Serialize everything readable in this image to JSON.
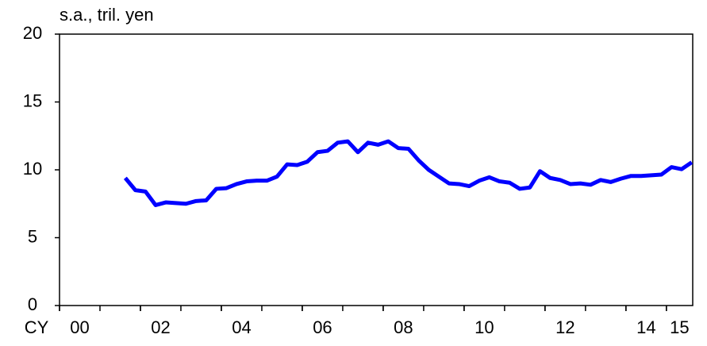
{
  "chart_data": {
    "type": "line",
    "y_label": "s.a., tril. yen",
    "x_label": "CY",
    "xlim": [
      2000,
      2015.65
    ],
    "xticks": [
      {
        "value": 2000,
        "label": "00"
      },
      {
        "value": 2002,
        "label": "02"
      },
      {
        "value": 2004,
        "label": "04"
      },
      {
        "value": 2006,
        "label": "06"
      },
      {
        "value": 2008,
        "label": "08"
      },
      {
        "value": 2010,
        "label": "10"
      },
      {
        "value": 2012,
        "label": "12"
      },
      {
        "value": 2014,
        "label": "14"
      },
      {
        "value": 2015,
        "label": "15"
      }
    ],
    "ylim": [
      0,
      20
    ],
    "yticks": [
      0,
      5,
      10,
      15,
      20
    ],
    "x": [
      2001.625,
      2001.875,
      2002.125,
      2002.375,
      2002.625,
      2002.875,
      2003.125,
      2003.375,
      2003.625,
      2003.875,
      2004.125,
      2004.375,
      2004.625,
      2004.875,
      2005.125,
      2005.375,
      2005.625,
      2005.875,
      2006.125,
      2006.375,
      2006.625,
      2006.875,
      2007.125,
      2007.375,
      2007.625,
      2007.875,
      2008.125,
      2008.375,
      2008.625,
      2008.875,
      2009.125,
      2009.375,
      2009.625,
      2009.875,
      2010.125,
      2010.375,
      2010.625,
      2010.875,
      2011.125,
      2011.375,
      2011.625,
      2011.875,
      2012.125,
      2012.375,
      2012.625,
      2012.875,
      2013.125,
      2013.375,
      2013.625,
      2013.875,
      2014.125,
      2014.375,
      2014.625,
      2014.875,
      2015.125,
      2015.375,
      2015.625
    ],
    "series": [
      {
        "color": "#0000ff",
        "values": [
          9.4,
          8.5,
          8.4,
          7.4,
          7.6,
          7.55,
          7.5,
          7.7,
          7.75,
          8.6,
          8.65,
          8.95,
          9.15,
          9.2,
          9.2,
          9.5,
          10.4,
          10.35,
          10.6,
          11.3,
          11.4,
          12.0,
          12.1,
          11.3,
          12.0,
          11.85,
          12.1,
          11.6,
          11.55,
          10.7,
          10.0,
          9.5,
          9.0,
          8.95,
          8.8,
          9.2,
          9.45,
          9.15,
          9.05,
          8.6,
          8.7,
          9.9,
          9.4,
          9.25,
          8.95,
          9.0,
          8.9,
          9.25,
          9.1,
          9.35,
          9.55,
          9.55,
          9.6,
          9.65,
          10.2,
          10.05,
          10.55
        ]
      }
    ]
  }
}
